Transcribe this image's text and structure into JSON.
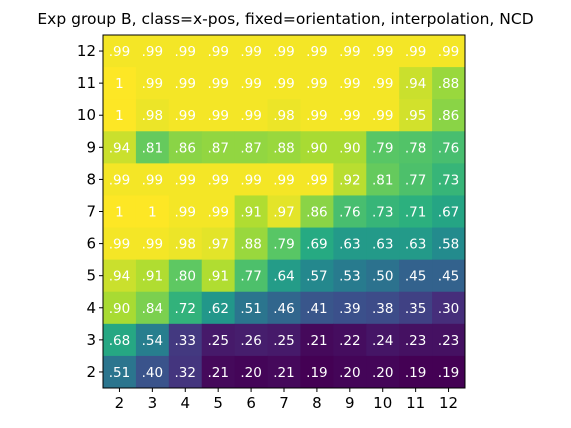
{
  "chart_data": {
    "type": "heatmap",
    "title": "Exp group B, class=x-pos, fixed=orientation, interpolation, NCD",
    "xlabel": "",
    "ylabel": "",
    "x_categories": [
      "2",
      "3",
      "4",
      "5",
      "6",
      "7",
      "8",
      "9",
      "10",
      "11",
      "12"
    ],
    "y_categories": [
      "12",
      "11",
      "10",
      "9",
      "8",
      "7",
      "6",
      "5",
      "4",
      "3",
      "2"
    ],
    "colormap": "viridis",
    "value_range": [
      0.19,
      1.0
    ],
    "grid": false,
    "legend": "none",
    "values": [
      [
        0.99,
        0.99,
        0.99,
        0.99,
        0.99,
        0.99,
        0.99,
        0.99,
        0.99,
        0.99,
        0.99
      ],
      [
        1,
        0.99,
        0.99,
        0.99,
        0.99,
        0.99,
        0.99,
        0.99,
        0.99,
        0.94,
        0.88
      ],
      [
        1,
        0.98,
        0.99,
        0.99,
        0.99,
        0.98,
        0.99,
        0.99,
        0.99,
        0.95,
        0.86
      ],
      [
        0.94,
        0.81,
        0.86,
        0.87,
        0.87,
        0.88,
        0.9,
        0.9,
        0.79,
        0.78,
        0.76
      ],
      [
        0.99,
        0.99,
        0.99,
        0.99,
        0.99,
        0.99,
        0.99,
        0.92,
        0.81,
        0.77,
        0.73
      ],
      [
        1,
        1,
        0.99,
        0.99,
        0.91,
        0.97,
        0.86,
        0.76,
        0.73,
        0.71,
        0.67
      ],
      [
        0.99,
        0.99,
        0.98,
        0.97,
        0.88,
        0.79,
        0.69,
        0.63,
        0.63,
        0.63,
        0.58
      ],
      [
        0.94,
        0.91,
        0.8,
        0.91,
        0.77,
        0.64,
        0.57,
        0.53,
        0.5,
        0.45,
        0.45
      ],
      [
        0.9,
        0.84,
        0.72,
        0.62,
        0.51,
        0.46,
        0.41,
        0.39,
        0.38,
        0.35,
        0.3
      ],
      [
        0.68,
        0.54,
        0.33,
        0.25,
        0.26,
        0.25,
        0.21,
        0.22,
        0.24,
        0.23,
        0.23
      ],
      [
        0.51,
        0.4,
        0.32,
        0.21,
        0.2,
        0.21,
        0.19,
        0.2,
        0.2,
        0.19,
        0.19
      ]
    ],
    "cell_labels": [
      [
        ".99",
        ".99",
        ".99",
        ".99",
        ".99",
        ".99",
        ".99",
        ".99",
        ".99",
        ".99",
        ".99"
      ],
      [
        "1",
        ".99",
        ".99",
        ".99",
        ".99",
        ".99",
        ".99",
        ".99",
        ".99",
        ".94",
        ".88"
      ],
      [
        "1",
        ".98",
        ".99",
        ".99",
        ".99",
        ".98",
        ".99",
        ".99",
        ".99",
        ".95",
        ".86"
      ],
      [
        ".94",
        ".81",
        ".86",
        ".87",
        ".87",
        ".88",
        ".90",
        ".90",
        ".79",
        ".78",
        ".76"
      ],
      [
        ".99",
        ".99",
        ".99",
        ".99",
        ".99",
        ".99",
        ".99",
        ".92",
        ".81",
        ".77",
        ".73"
      ],
      [
        "1",
        "1",
        ".99",
        ".99",
        ".91",
        ".97",
        ".86",
        ".76",
        ".73",
        ".71",
        ".67"
      ],
      [
        ".99",
        ".99",
        ".98",
        ".97",
        ".88",
        ".79",
        ".69",
        ".63",
        ".63",
        ".63",
        ".58"
      ],
      [
        ".94",
        ".91",
        ".80",
        ".91",
        ".77",
        ".64",
        ".57",
        ".53",
        ".50",
        ".45",
        ".45"
      ],
      [
        ".90",
        ".84",
        ".72",
        ".62",
        ".51",
        ".46",
        ".41",
        ".39",
        ".38",
        ".35",
        ".30"
      ],
      [
        ".68",
        ".54",
        ".33",
        ".25",
        ".26",
        ".25",
        ".21",
        ".22",
        ".24",
        ".23",
        ".23"
      ],
      [
        ".51",
        ".40",
        ".32",
        ".21",
        ".20",
        ".21",
        ".19",
        ".20",
        ".20",
        ".19",
        ".19"
      ]
    ]
  }
}
